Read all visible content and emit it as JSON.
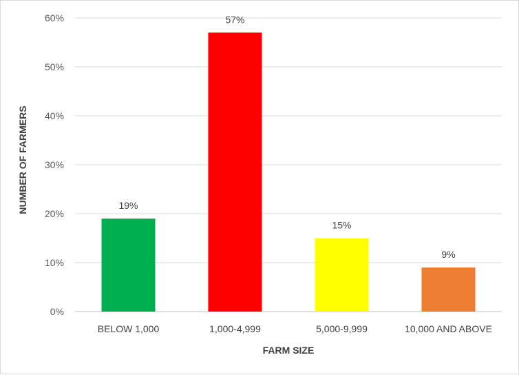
{
  "chart_data": {
    "type": "bar",
    "title": "",
    "xlabel": "FARM SIZE",
    "ylabel": "NUMBER OF FARMERS",
    "categories": [
      "BELOW 1,000",
      "1,000-4,999",
      "5,000-9,999",
      "10,000 AND ABOVE"
    ],
    "values": [
      19,
      57,
      15,
      9
    ],
    "data_labels": [
      "19%",
      "57%",
      "15%",
      "9%"
    ],
    "colors": [
      "#00b050",
      "#ff0000",
      "#ffff00",
      "#ed7d31"
    ],
    "ylim": [
      0,
      60
    ],
    "yticks": [
      0,
      10,
      20,
      30,
      40,
      50,
      60
    ],
    "ytick_labels": [
      "0%",
      "10%",
      "20%",
      "30%",
      "40%",
      "50%",
      "60%"
    ],
    "grid": true,
    "legend": "none"
  }
}
